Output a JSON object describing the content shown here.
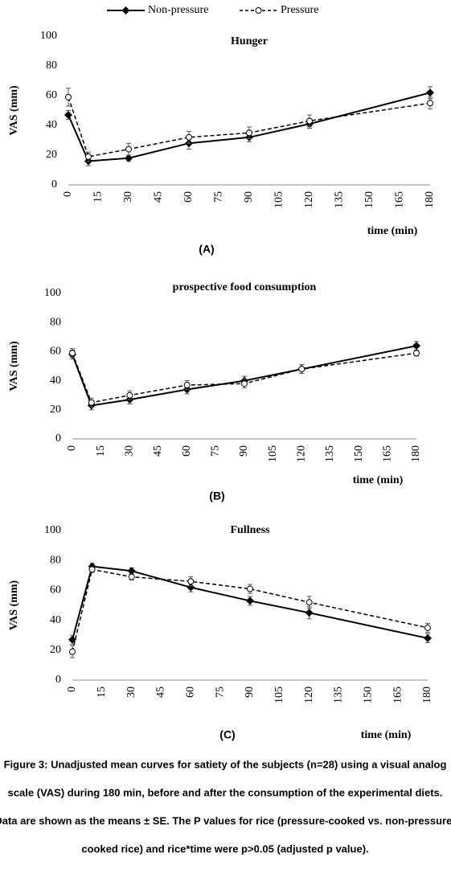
{
  "chart_data": [
    {
      "type": "line",
      "title": "Hunger",
      "ylabel": "VAS (mm)",
      "xlabel": "time (min)",
      "panel": "(A)",
      "x": [
        0,
        10,
        30,
        60,
        90,
        120,
        180
      ],
      "xlim": [
        0,
        180
      ],
      "xticks": [
        0,
        15,
        30,
        45,
        60,
        75,
        90,
        105,
        120,
        135,
        150,
        165,
        180
      ],
      "ylim": [
        0,
        100
      ],
      "yticks": [
        0,
        20,
        40,
        60,
        80,
        100
      ],
      "series": [
        {
          "name": "Non-pressure",
          "color": "#000000",
          "line_style": "solid",
          "marker": "diamond",
          "values": [
            47,
            16,
            18,
            28,
            32,
            41,
            62
          ],
          "errors": [
            3,
            3,
            2,
            4,
            3,
            3,
            4
          ]
        },
        {
          "name": "Pressure",
          "color": "#000000",
          "line_style": "dashed",
          "marker": "circle",
          "values": [
            59,
            19,
            24,
            32,
            35,
            43,
            55
          ],
          "errors": [
            6,
            3,
            4,
            4,
            4,
            4,
            4
          ]
        }
      ]
    },
    {
      "type": "line",
      "title": "prospective food consumption",
      "ylabel": "VAS (mm)",
      "xlabel": "time (min)",
      "panel": "(B)",
      "x": [
        0,
        10,
        30,
        60,
        90,
        120,
        180
      ],
      "xlim": [
        0,
        180
      ],
      "xticks": [
        0,
        15,
        30,
        45,
        60,
        75,
        90,
        105,
        120,
        135,
        150,
        165,
        180
      ],
      "ylim": [
        0,
        100
      ],
      "yticks": [
        0,
        20,
        40,
        60,
        80,
        100
      ],
      "series": [
        {
          "color": "#000000",
          "line_style": "solid",
          "marker": "diamond",
          "values": [
            58,
            23,
            27,
            34,
            40,
            48,
            64
          ],
          "errors": [
            3,
            3,
            3,
            3,
            3,
            3,
            3
          ]
        },
        {
          "color": "#000000",
          "line_style": "dashed",
          "marker": "circle",
          "values": [
            59,
            25,
            30,
            37,
            38,
            48,
            59
          ],
          "errors": [
            3,
            3,
            3,
            3,
            3,
            3,
            2
          ]
        }
      ]
    },
    {
      "type": "line",
      "title": "Fullness",
      "ylabel": "VAS (mm)",
      "xlabel": "time (min)",
      "panel": "(C)",
      "x": [
        0,
        10,
        30,
        60,
        90,
        120,
        180
      ],
      "xlim": [
        0,
        180
      ],
      "xticks": [
        0,
        15,
        30,
        45,
        60,
        75,
        90,
        105,
        120,
        135,
        150,
        165,
        180
      ],
      "ylim": [
        0,
        100
      ],
      "yticks": [
        0,
        20,
        40,
        60,
        80,
        100
      ],
      "series": [
        {
          "color": "#000000",
          "line_style": "solid",
          "marker": "diamond",
          "values": [
            27,
            76,
            73,
            62,
            53,
            45,
            28
          ],
          "errors": [
            3,
            2,
            2,
            3,
            3,
            4,
            3
          ]
        },
        {
          "color": "#000000",
          "line_style": "dashed",
          "marker": "circle",
          "values": [
            19,
            74,
            69,
            66,
            61,
            52,
            35
          ],
          "errors": [
            4,
            2,
            2,
            3,
            3,
            4,
            3
          ]
        }
      ]
    }
  ],
  "caption": [
    "Figure 3: Unadjusted mean curves for satiety of the subjects (n=28) using a visual analog",
    "scale (VAS) during 180 min, before and after the consumption of the experimental diets.",
    "Data are shown as the means ± SE. The P values for rice (pressure-cooked vs. non-pressure-",
    "cooked rice) and rice*time were p>0.05 (adjusted p value)."
  ]
}
